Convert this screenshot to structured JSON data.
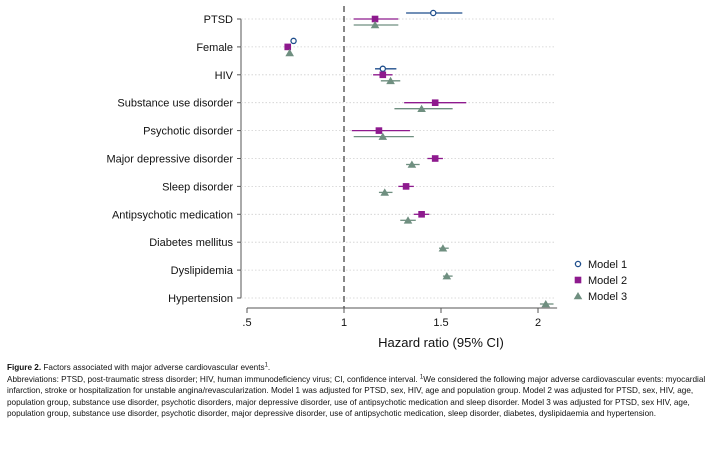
{
  "chart_data": {
    "type": "scatter",
    "subtype": "forest-plot",
    "xlabel": "Hazard ratio (95% CI)",
    "xlim": [
      0.5,
      2.15
    ],
    "xticks": [
      0.5,
      1,
      1.5,
      2
    ],
    "xtick_labels": [
      ".5",
      "1",
      "1.5",
      "2"
    ],
    "reference_line": 1,
    "categories": [
      "PTSD",
      "Female",
      "HIV",
      "Substance use disorder",
      "Psychotic disorder",
      "Major depressive disorder",
      "Sleep disorder",
      "Antipsychotic medication",
      "Diabetes mellitus",
      "Dyslipidemia",
      "Hypertension"
    ],
    "series": [
      {
        "name": "Model 1",
        "marker": "circle",
        "color": "#1f4e8c",
        "points": [
          {
            "category": "PTSD",
            "hr": 1.46,
            "lo": 1.32,
            "hi": 1.61
          },
          {
            "category": "Female",
            "hr": 0.74,
            "lo": 0.74,
            "hi": 0.74
          },
          {
            "category": "HIV",
            "hr": 1.2,
            "lo": 1.16,
            "hi": 1.27
          }
        ]
      },
      {
        "name": "Model 2",
        "marker": "square",
        "color": "#8e1a8e",
        "points": [
          {
            "category": "PTSD",
            "hr": 1.16,
            "lo": 1.05,
            "hi": 1.28
          },
          {
            "category": "Female",
            "hr": 0.71,
            "lo": 0.71,
            "hi": 0.71
          },
          {
            "category": "HIV",
            "hr": 1.2,
            "lo": 1.15,
            "hi": 1.25
          },
          {
            "category": "Substance use disorder",
            "hr": 1.47,
            "lo": 1.31,
            "hi": 1.63
          },
          {
            "category": "Psychotic disorder",
            "hr": 1.18,
            "lo": 1.04,
            "hi": 1.34
          },
          {
            "category": "Major depressive disorder",
            "hr": 1.47,
            "lo": 1.43,
            "hi": 1.51
          },
          {
            "category": "Sleep disorder",
            "hr": 1.32,
            "lo": 1.28,
            "hi": 1.36
          },
          {
            "category": "Antipsychotic medication",
            "hr": 1.4,
            "lo": 1.36,
            "hi": 1.44
          }
        ]
      },
      {
        "name": "Model 3",
        "marker": "triangle",
        "color": "#6f8f80",
        "points": [
          {
            "category": "PTSD",
            "hr": 1.16,
            "lo": 1.05,
            "hi": 1.28
          },
          {
            "category": "Female",
            "hr": 0.72,
            "lo": 0.72,
            "hi": 0.72
          },
          {
            "category": "HIV",
            "hr": 1.24,
            "lo": 1.19,
            "hi": 1.29
          },
          {
            "category": "Substance use disorder",
            "hr": 1.4,
            "lo": 1.26,
            "hi": 1.56
          },
          {
            "category": "Psychotic disorder",
            "hr": 1.2,
            "lo": 1.05,
            "hi": 1.36
          },
          {
            "category": "Major depressive disorder",
            "hr": 1.35,
            "lo": 1.32,
            "hi": 1.39
          },
          {
            "category": "Sleep disorder",
            "hr": 1.21,
            "lo": 1.18,
            "hi": 1.25
          },
          {
            "category": "Antipsychotic medication",
            "hr": 1.33,
            "lo": 1.29,
            "hi": 1.37
          },
          {
            "category": "Diabetes mellitus",
            "hr": 1.51,
            "lo": 1.49,
            "hi": 1.54
          },
          {
            "category": "Dyslipidemia",
            "hr": 1.53,
            "lo": 1.51,
            "hi": 1.56
          },
          {
            "category": "Hypertension",
            "hr": 2.04,
            "lo": 2.01,
            "hi": 2.08
          }
        ]
      }
    ],
    "legend_position": "bottom-right"
  },
  "caption": {
    "title": "Figure 2.",
    "title_text": "Factors associated with major adverse cardiovascular events",
    "title_sup": "1",
    "body_before_sup": "Abbreviations: PTSD, post-traumatic stress disorder; HIV, human immunodeficiency virus; CI, confidence interval. ",
    "body_sup": "1",
    "body_after_sup": "We considered the following major adverse cardiovascular events: myocardial infarction, stroke or hospitalization for unstable angina/revascularization. Model 1 was adjusted for PTSD, sex, HIV, age and population group. Model 2 was adjusted for PTSD, sex, HIV, age, population group, substance use disorder, psychotic disorders, major depressive disorder, use of antipsychotic medication and sleep disorder. Model 3 was adjusted for PTSD, sex HIV, age, population group, substance use disorder, psychotic disorder, major depressive disorder, use of antipsychotic medication, sleep disorder, diabetes, dyslipidaemia and hypertension."
  }
}
